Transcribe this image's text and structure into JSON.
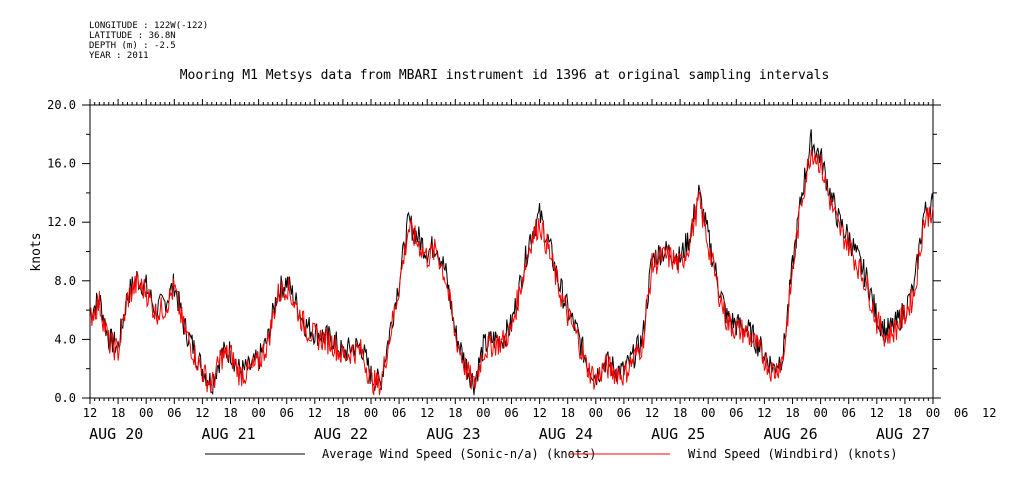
{
  "metadata": {
    "longitude": "LONGITUDE : 122W(-122)",
    "latitude": "LATITUDE : 36.8N",
    "depth": "DEPTH (m) : -2.5",
    "year": "YEAR : 2011"
  },
  "chart_data": {
    "type": "line",
    "title": "Mooring M1 Metsys data from MBARI instrument id 1396 at original sampling intervals",
    "ylabel": "knots",
    "xlabel": "",
    "ylim": [
      0,
      20
    ],
    "y_ticks": [
      "0.0",
      "4.0",
      "8.0",
      "12.0",
      "16.0",
      "20.0"
    ],
    "x_range_hours": [
      12,
      192
    ],
    "x_ticks": [
      "12",
      "18",
      "00",
      "06",
      "12",
      "18",
      "00",
      "06",
      "12",
      "18",
      "00",
      "06",
      "12",
      "18",
      "00",
      "06",
      "12",
      "18",
      "00",
      "06",
      "12",
      "18",
      "00",
      "06",
      "12",
      "18",
      "00",
      "06",
      "12",
      "18",
      "00",
      "06",
      "12"
    ],
    "day_labels": [
      "AUG 20",
      "AUG 21",
      "AUG 22",
      "AUG 23",
      "AUG 24",
      "AUG 25",
      "AUG 26",
      "AUG 27"
    ],
    "series": [
      {
        "name": "Average Wind Speed (Sonic-n/a) (knots)",
        "color": "#000000",
        "x": [
          12,
          14,
          16,
          18,
          20,
          22,
          24,
          26,
          28,
          30,
          32,
          34,
          36,
          38,
          40,
          42,
          44,
          46,
          48,
          50,
          52,
          54,
          56,
          58,
          60,
          62,
          64,
          66,
          68,
          70,
          72,
          74,
          76,
          78,
          80,
          82,
          84,
          86,
          88,
          90,
          92,
          94,
          96,
          98,
          100,
          102,
          104,
          106,
          108,
          110,
          112,
          114,
          116,
          118,
          120,
          122,
          124,
          126,
          128,
          130,
          132,
          134,
          136,
          138,
          140,
          142,
          144,
          146,
          148,
          150,
          152,
          154,
          156,
          158,
          160,
          162,
          164,
          166,
          168,
          170,
          172,
          174,
          176,
          178,
          180,
          182,
          184,
          186,
          188,
          190,
          192
        ],
        "values": [
          5.8,
          6.8,
          4.0,
          3.5,
          7.0,
          8.2,
          7.6,
          6.0,
          6.5,
          7.8,
          5.0,
          3.5,
          2.0,
          1.0,
          3.0,
          3.2,
          1.8,
          2.0,
          2.6,
          4.0,
          7.2,
          8.0,
          6.5,
          5.0,
          4.5,
          4.2,
          4.0,
          3.0,
          3.5,
          3.5,
          1.5,
          1.0,
          4.5,
          8.0,
          12.0,
          11.0,
          10.0,
          10.5,
          8.5,
          4.5,
          2.5,
          1.0,
          3.5,
          4.0,
          4.0,
          5.0,
          8.0,
          11.0,
          12.5,
          10.5,
          8.0,
          6.0,
          4.5,
          2.5,
          1.5,
          2.5,
          2.0,
          1.8,
          2.8,
          4.0,
          9.5,
          10.0,
          10.0,
          9.5,
          11.0,
          14.0,
          11.0,
          8.0,
          5.5,
          5.0,
          4.8,
          4.0,
          3.0,
          2.0,
          3.0,
          9.0,
          14.0,
          17.5,
          16.5,
          14.0,
          12.0,
          11.0,
          9.5,
          8.0,
          5.5,
          4.5,
          5.0,
          6.0,
          7.5,
          12.5,
          13.5
        ]
      },
      {
        "name": "Wind Speed (Windbird) (knots)",
        "color": "#ff0000",
        "x": [
          12,
          14,
          16,
          18,
          20,
          22,
          24,
          26,
          28,
          30,
          32,
          34,
          36,
          38,
          40,
          42,
          44,
          46,
          48,
          50,
          52,
          54,
          56,
          58,
          60,
          62,
          64,
          66,
          68,
          70,
          72,
          74,
          76,
          78,
          80,
          82,
          84,
          86,
          88,
          90,
          92,
          94,
          96,
          98,
          100,
          102,
          104,
          106,
          108,
          110,
          112,
          114,
          116,
          118,
          120,
          122,
          124,
          126,
          128,
          130,
          132,
          134,
          136,
          138,
          140,
          142,
          144,
          146,
          148,
          150,
          152,
          154,
          156,
          158,
          160,
          162,
          164,
          166,
          168,
          170,
          172,
          174,
          176,
          178,
          180,
          182,
          184,
          186,
          188,
          190,
          192
        ],
        "values": [
          5.5,
          6.5,
          3.8,
          3.2,
          6.8,
          7.8,
          7.3,
          5.8,
          6.2,
          7.5,
          4.8,
          3.2,
          1.8,
          0.8,
          2.8,
          3.0,
          1.6,
          1.8,
          2.4,
          3.8,
          7.0,
          7.7,
          6.2,
          4.8,
          4.2,
          4.0,
          3.7,
          2.8,
          3.2,
          3.2,
          1.2,
          0.8,
          4.2,
          7.6,
          11.6,
          10.6,
          9.6,
          10.1,
          8.1,
          4.2,
          2.2,
          0.8,
          3.2,
          3.7,
          3.8,
          4.7,
          7.7,
          10.6,
          12.0,
          10.0,
          7.6,
          5.6,
          4.2,
          2.2,
          1.2,
          2.2,
          1.8,
          1.6,
          2.6,
          3.7,
          9.0,
          9.6,
          9.6,
          9.0,
          10.6,
          13.5,
          10.5,
          7.6,
          5.2,
          4.7,
          4.5,
          3.7,
          2.7,
          1.7,
          2.7,
          8.6,
          13.6,
          17.0,
          16.0,
          13.5,
          11.5,
          10.5,
          9.0,
          7.6,
          5.2,
          4.2,
          4.7,
          5.7,
          7.1,
          12.0,
          13.0
        ]
      }
    ]
  }
}
